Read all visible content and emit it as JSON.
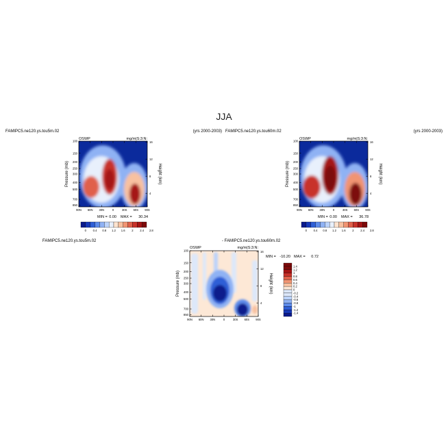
{
  "title": "JJA",
  "colors": {
    "pos_ramp": [
      "#0b1a8c",
      "#1739b8",
      "#2f5fd6",
      "#5d8bea",
      "#8fb2f4",
      "#bcd3fa",
      "#e8f0fc",
      "#fde3cf",
      "#f8c1a0",
      "#f19472",
      "#e0614b",
      "#c8322a",
      "#a51414",
      "#7d0a0a"
    ],
    "diff_ramp": [
      "#0b1a8c",
      "#1739b8",
      "#2f5fd6",
      "#5d8bea",
      "#8fb2f4",
      "#bcd3fa",
      "#dde8fa",
      "#fde8d6",
      "#f8c1a0",
      "#f19472",
      "#e0614b",
      "#c8322a",
      "#a51414",
      "#7d0a0a"
    ],
    "background_field": "#0b2a9c",
    "diff_background": "#fde8d6"
  },
  "chart_data": [
    {
      "type": "heatmap",
      "case_name": "FAMIPC5.ne120.ys.tou5m.02",
      "years": "(yrs 2000-2003)",
      "variable": "OSWP",
      "units": "mg/m|S:3:N:",
      "xlabel": "",
      "ylabel": "Pressure (mb)",
      "y2label": "Height (km)",
      "x_ticks": [
        "90N",
        "60N",
        "30N",
        "0",
        "30S",
        "60S",
        "90S"
      ],
      "y_ticks": [
        "100",
        "150",
        "200",
        "250",
        "300",
        "400",
        "500",
        "700",
        "850"
      ],
      "y2_ticks": [
        "16",
        "12",
        "8",
        "4"
      ],
      "min_label": "MIN =",
      "min_value": "0.00",
      "max_label": "MAX =",
      "max_value": "30.34",
      "colorbar_labels": [
        "0",
        "0.4",
        "0.8",
        "1.2",
        "1.6",
        "2",
        "2.4",
        "2.8"
      ]
    },
    {
      "type": "heatmap",
      "case_name": "FAMIPC5.ne120.ys.tou60m.02",
      "years": "(yrs 2000-2003)",
      "variable": "OSWP",
      "units": "mg/m|S:3:N:",
      "xlabel": "",
      "ylabel": "Pressure (mb)",
      "y2label": "Height (km)",
      "x_ticks": [
        "90N",
        "60N",
        "30N",
        "0",
        "30S",
        "60S",
        "90S"
      ],
      "y_ticks": [
        "100",
        "150",
        "200",
        "250",
        "300",
        "400",
        "500",
        "700",
        "850"
      ],
      "y2_ticks": [
        "16",
        "12",
        "8",
        "4"
      ],
      "min_label": "MIN =",
      "min_value": "0.00",
      "max_label": "MAX =",
      "max_value": "36.78",
      "colorbar_labels": [
        "0",
        "0.4",
        "0.8",
        "1.2",
        "1.6",
        "2",
        "2.4",
        "2.8"
      ]
    },
    {
      "type": "heatmap",
      "case_name": "FAMIPC5.ne120.ys.tou5m.02",
      "diff_title": "- FAMIPC5.ne120.ys.tou60m.02",
      "variable": "OSWP",
      "units": "mg/m|S:3:N:",
      "xlabel": "",
      "ylabel": "Pressure (mb)",
      "y2label": "Height (km)",
      "x_ticks": [
        "90N",
        "60N",
        "30N",
        "0",
        "30S",
        "60S",
        "90S"
      ],
      "y_ticks": [
        "100",
        "150",
        "200",
        "250",
        "300",
        "400",
        "500",
        "700",
        "850"
      ],
      "y2_ticks": [
        "16",
        "12",
        "8",
        "4"
      ],
      "min_label": "MIN =",
      "min_value": "-10.20",
      "max_label": "MAX =",
      "max_value": "0.72",
      "colorbar_labels": [
        "1.4",
        "1.2",
        "1",
        "0.8",
        "0.6",
        "0.4",
        "0.2",
        "0",
        "-0.2",
        "-0.4",
        "-0.6",
        "-0.8",
        "-1",
        "-1.2",
        "-1.4"
      ]
    }
  ]
}
